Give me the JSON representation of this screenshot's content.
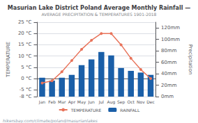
{
  "chart_data": {
    "type": "bar",
    "title": "Masurian Lake District Poland Average Monthly Rainfall —",
    "subtitle": "AVERAGE PRECIPITATION & TEMPERATURES 1901-2018",
    "categories": [
      "Jan",
      "Feb",
      "Mar",
      "Apr",
      "May",
      "Jun",
      "Jul",
      "Aug",
      "Sep",
      "Oct",
      "Nov",
      "Dec"
    ],
    "series": [
      {
        "name": "TEMPERATURE",
        "type": "line",
        "color": "#e8735a",
        "marker": "circle",
        "values": [
          -2,
          -1,
          3,
          8,
          13,
          17,
          20,
          20,
          15,
          9,
          4,
          0
        ]
      },
      {
        "name": "RAINFALL",
        "type": "bar",
        "color": "#1a5fa8",
        "axis": "y2",
        "values": [
          33,
          28,
          33,
          38,
          55,
          65,
          78,
          72,
          50,
          45,
          42,
          38
        ]
      }
    ],
    "ylabel": "TEMPERATURE",
    "y2label": "Precipitation",
    "ylim": [
      -8,
      25
    ],
    "yticks": [
      {
        "value": -8,
        "label": "-8 °C"
      },
      {
        "value": -5,
        "label": "-5 °C"
      },
      {
        "value": 0,
        "label": "0 °C"
      },
      {
        "value": 5,
        "label": "5 °C"
      },
      {
        "value": 10,
        "label": "10 °C"
      },
      {
        "value": 15,
        "label": "15 °C"
      },
      {
        "value": 20,
        "label": "20 °C"
      },
      {
        "value": 25,
        "label": "25 °C"
      }
    ],
    "y2lim": [
      0,
      130
    ],
    "y2ticks": [
      {
        "value": 0,
        "label": "0mm"
      },
      {
        "value": 20,
        "label": "20mm"
      },
      {
        "value": 40,
        "label": "40mm"
      },
      {
        "value": 60,
        "label": "60mm"
      },
      {
        "value": 80,
        "label": "80mm"
      },
      {
        "value": 100,
        "label": "100mm"
      },
      {
        "value": 120,
        "label": "120mm"
      }
    ],
    "grid": true,
    "legend": "bottom",
    "annotations": [
      "hikersbay.com/climate/poland/masurianlakes"
    ]
  }
}
